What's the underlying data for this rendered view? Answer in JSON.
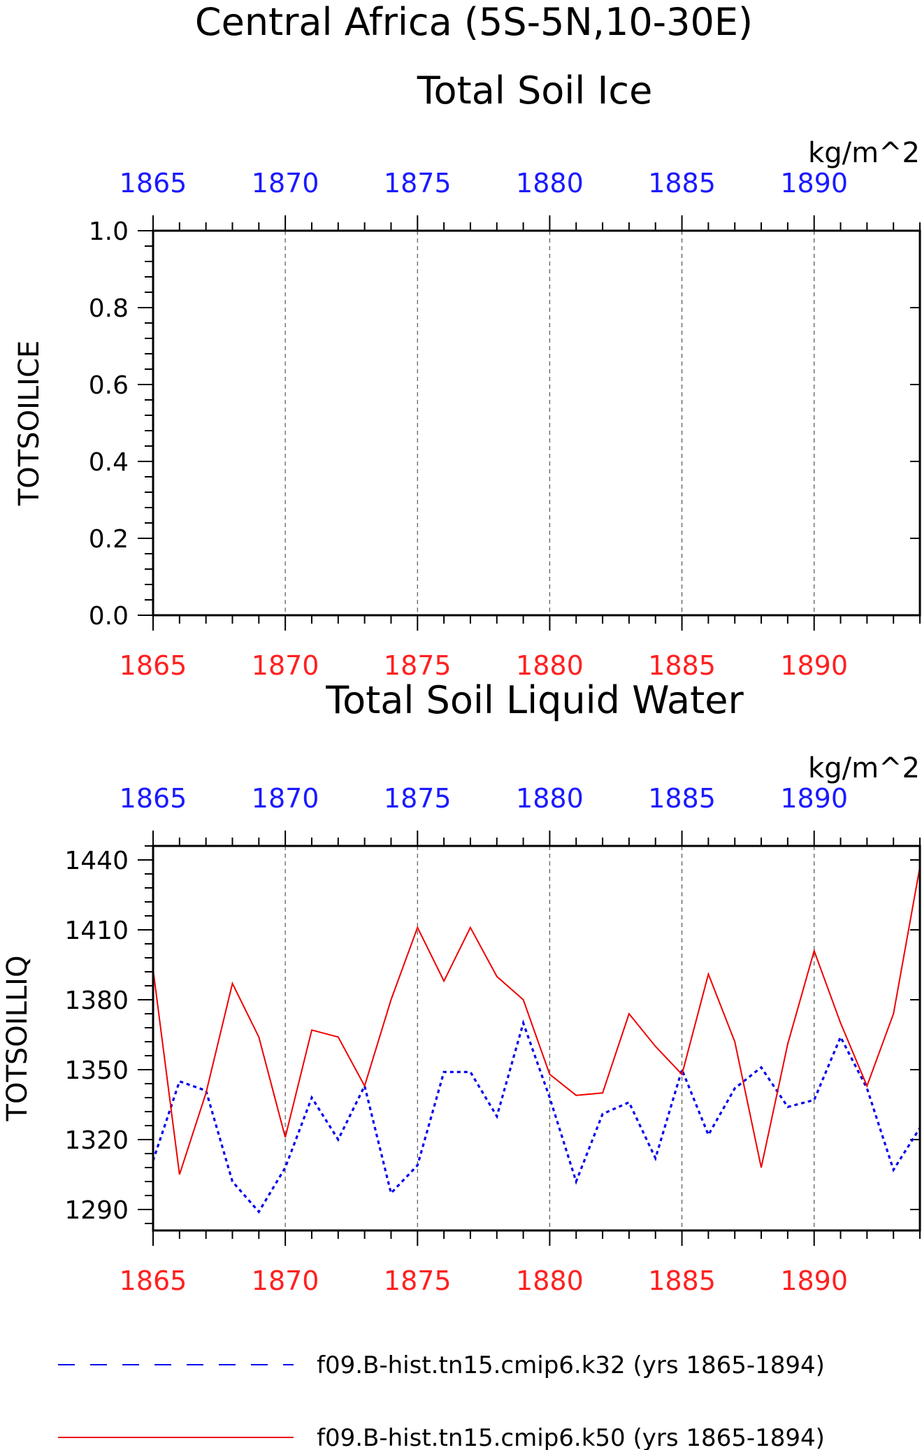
{
  "figure": {
    "title_line1": "Central Africa (5S-5N,10-30E)"
  },
  "colors": {
    "top_axis": "#1a1aff",
    "bottom_axis": "#ff2020",
    "k32_series": "#0000ee",
    "k50_series": "#ee0000",
    "axis": "#000000",
    "grid": "#555555"
  },
  "chart_data": [
    {
      "type": "line",
      "title": "Total Soil Ice",
      "ylabel": "TOTSOILICE",
      "units": "kg/m^2",
      "xlim": [
        1865,
        1894
      ],
      "ylim": [
        0.0,
        1.0
      ],
      "x_ticks": [
        "1865",
        "1870",
        "1875",
        "1880",
        "1885",
        "1890"
      ],
      "y_ticks": [
        "0.0",
        "0.2",
        "0.4",
        "0.6",
        "0.8",
        "1.0"
      ],
      "grid": "vertical dashed at major x ticks",
      "x": [],
      "series": []
    },
    {
      "type": "line",
      "title": "Total Soil Liquid Water",
      "ylabel": "TOTSOILLIQ",
      "units": "kg/m^2",
      "xlim": [
        1865,
        1894
      ],
      "ylim": [
        1281,
        1446
      ],
      "x_ticks": [
        "1865",
        "1870",
        "1875",
        "1880",
        "1885",
        "1890"
      ],
      "y_ticks": [
        "1290",
        "1320",
        "1350",
        "1380",
        "1410",
        "1440"
      ],
      "grid": "vertical dashed at major x ticks",
      "x": [
        1865,
        1866,
        1867,
        1868,
        1869,
        1870,
        1871,
        1872,
        1873,
        1874,
        1875,
        1876,
        1877,
        1878,
        1879,
        1880,
        1881,
        1882,
        1883,
        1884,
        1885,
        1886,
        1887,
        1888,
        1889,
        1890,
        1891,
        1892,
        1893,
        1894
      ],
      "series": [
        {
          "name": "f09.B-hist.tn15.cmip6.k32 (yrs 1865-1894)",
          "style": "dashed",
          "values": [
            1311,
            1345,
            1341,
            1302,
            1289,
            1308,
            1338,
            1320,
            1343,
            1297,
            1309,
            1349,
            1349,
            1330,
            1370,
            1338,
            1302,
            1331,
            1336,
            1312,
            1350,
            1322,
            1342,
            1351,
            1334,
            1337,
            1364,
            1342,
            1307,
            1325
          ]
        },
        {
          "name": "f09.B-hist.tn15.cmip6.k50 (yrs 1865-1894)",
          "style": "solid",
          "values": [
            1393,
            1305,
            1340,
            1387,
            1364,
            1321,
            1367,
            1364,
            1343,
            1380,
            1411,
            1388,
            1411,
            1390,
            1380,
            1348,
            1339,
            1340,
            1374,
            1360,
            1348,
            1391,
            1362,
            1308,
            1361,
            1401,
            1370,
            1343,
            1374,
            1437
          ]
        }
      ]
    }
  ]
}
